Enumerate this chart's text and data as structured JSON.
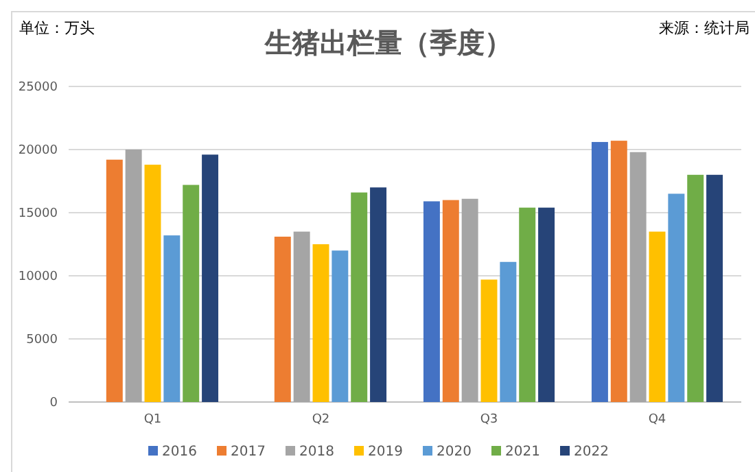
{
  "chart_data": {
    "type": "bar",
    "title": "生猪出栏量（季度）",
    "annotations": [
      "单位：万头",
      "来源：统计局"
    ],
    "categories": [
      "Q1",
      "Q2",
      "Q3",
      "Q4"
    ],
    "series": [
      {
        "name": "2016",
        "color": "#4472c4",
        "values": [
          null,
          null,
          15900,
          20600
        ]
      },
      {
        "name": "2017",
        "color": "#ed7d31",
        "values": [
          19200,
          13100,
          16000,
          20700
        ]
      },
      {
        "name": "2018",
        "color": "#a5a5a5",
        "values": [
          20000,
          13500,
          16100,
          19800
        ]
      },
      {
        "name": "2019",
        "color": "#ffc000",
        "values": [
          18800,
          12500,
          9700,
          13500
        ]
      },
      {
        "name": "2020",
        "color": "#5b9bd5",
        "values": [
          13200,
          12000,
          11100,
          16500
        ]
      },
      {
        "name": "2021",
        "color": "#70ad47",
        "values": [
          17200,
          16600,
          15400,
          18000
        ]
      },
      {
        "name": "2022",
        "color": "#264478",
        "values": [
          19600,
          17000,
          15400,
          18000
        ]
      }
    ],
    "ylim": [
      0,
      25000
    ],
    "yticks": [
      0,
      5000,
      10000,
      15000,
      20000,
      25000
    ],
    "grid": "y",
    "legend": "bottom"
  }
}
